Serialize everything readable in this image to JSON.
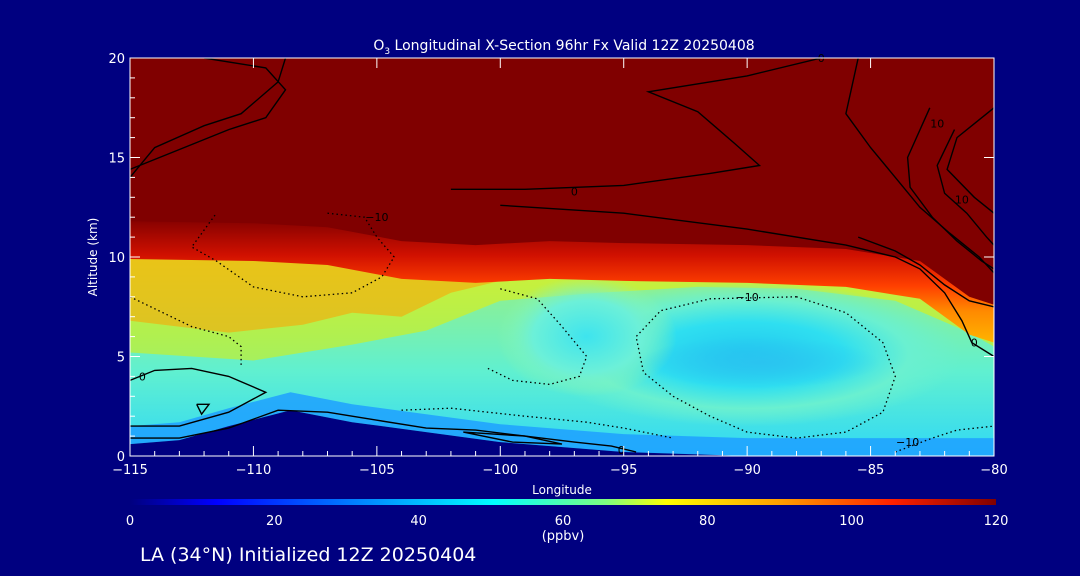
{
  "chart_data": {
    "type": "heatmap",
    "title_prefix": "O",
    "title_sub": "3",
    "title_rest": " Longitudinal X-Section 96hr  Fx Valid 12Z 20250408",
    "xlabel": "Longitude",
    "ylabel": "Altitude (km)",
    "xlim": [
      -115,
      -80
    ],
    "ylim": [
      0,
      20
    ],
    "x_ticks": [
      -115,
      -110,
      -105,
      -100,
      -95,
      -90,
      -85,
      -80
    ],
    "x_tick_labels": [
      "−115",
      "−110",
      "−105",
      "−100",
      "−95",
      "−90",
      "−85",
      "−80"
    ],
    "y_ticks": [
      0,
      5,
      10,
      15,
      20
    ],
    "y_tick_labels": [
      "0",
      "5",
      "10",
      "15",
      "20"
    ],
    "colorbar": {
      "min": 0,
      "max": 120,
      "ticks": [
        0,
        20,
        40,
        60,
        80,
        100,
        120
      ],
      "tick_labels": [
        "0",
        "20",
        "40",
        "60",
        "80",
        "100",
        "120"
      ],
      "unit_label": "(ppbv)"
    },
    "contour_labels": [
      {
        "text": "0",
        "x": -95.1,
        "y": 0.3
      },
      {
        "text": "0",
        "x": -97,
        "y": 13.3
      },
      {
        "text": "0",
        "x": -80.8,
        "y": 5.7
      },
      {
        "text": "0",
        "x": -87,
        "y": 20
      },
      {
        "text": "−10",
        "x": -105,
        "y": 12
      },
      {
        "text": "−10",
        "x": -90,
        "y": 8
      },
      {
        "text": "−10",
        "x": -83.5,
        "y": 0.7
      },
      {
        "text": "10",
        "x": -82.3,
        "y": 16.7
      },
      {
        "text": "10",
        "x": -81.3,
        "y": 12.9
      },
      {
        "text": "0",
        "x": -114.5,
        "y": 4
      }
    ],
    "fields": {
      "tropopause_km": [
        [
          -115,
          11.8
        ],
        [
          -110,
          11.7
        ],
        [
          -107,
          11.5
        ],
        [
          -104,
          10.8
        ],
        [
          -101,
          10.6
        ],
        [
          -98,
          10.8
        ],
        [
          -95,
          10.7
        ],
        [
          -90,
          10.6
        ],
        [
          -86,
          10.4
        ],
        [
          -83,
          9.8
        ],
        [
          -81,
          8
        ],
        [
          -80,
          7.6
        ]
      ],
      "minimum_core": {
        "lon": -89.5,
        "alt_km": 5.1,
        "ppbv": 44
      },
      "terrain_km": [
        [
          -115,
          0.6
        ],
        [
          -113,
          0.8
        ],
        [
          -111,
          1.5
        ],
        [
          -108.5,
          2.3
        ],
        [
          -106,
          1.7
        ],
        [
          -103,
          1.2
        ],
        [
          -100,
          0.7
        ],
        [
          -95,
          0.2
        ],
        [
          -90,
          0
        ],
        [
          -80,
          0
        ]
      ]
    }
  },
  "footer": {
    "text": "LA (34°N) Initialized 12Z 20250404"
  },
  "colors": {
    "background": "#000080",
    "stratosphere": "#800000",
    "contour": "#000000",
    "text": "#ffffff"
  }
}
